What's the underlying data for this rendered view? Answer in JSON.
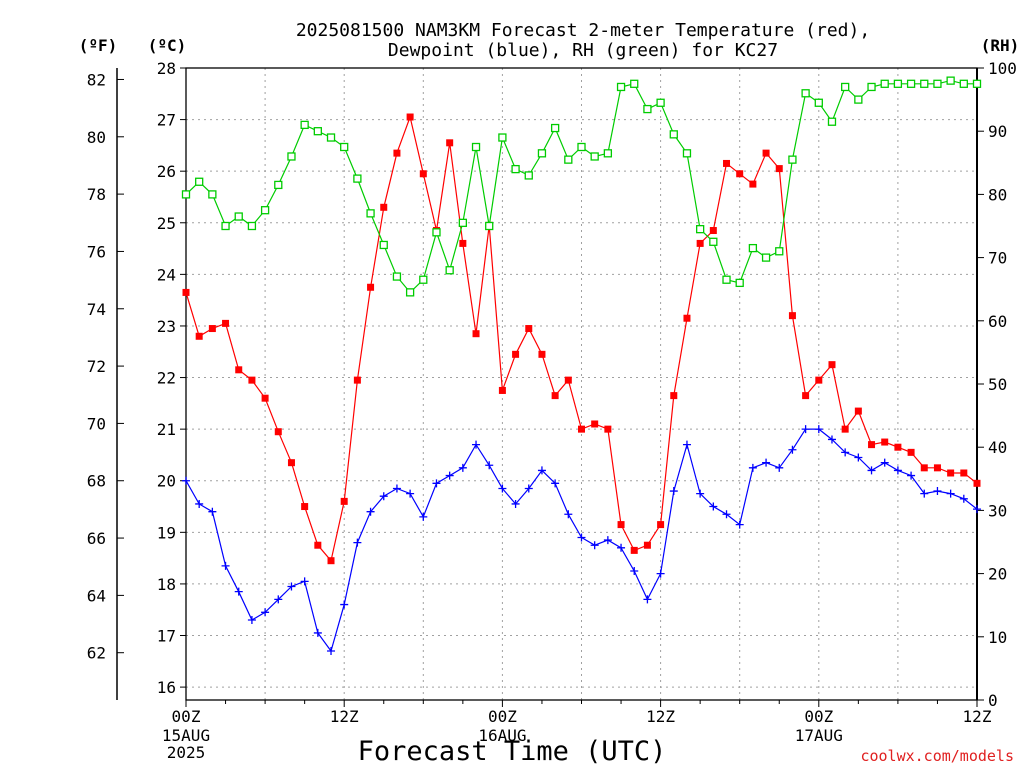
{
  "title_line1": "2025081500 NAM3KM Forecast 2-meter Temperature (red),",
  "title_line2": "Dewpoint (blue), RH (green) for KC27",
  "unit_f": "(ºF)",
  "unit_c": "(ºC)",
  "unit_rh": "(RH)",
  "xlabel": "Forecast Time (UTC)",
  "watermark": "coolwx.com/models",
  "colors": {
    "temperature": "#ff0000",
    "dewpoint": "#0000ff",
    "rh": "#00cc00",
    "axis": "#000000",
    "grid": "#a0a0a0"
  },
  "chart_data": {
    "type": "line",
    "x": [
      0,
      1,
      2,
      3,
      4,
      5,
      6,
      7,
      8,
      9,
      10,
      11,
      12,
      13,
      14,
      15,
      16,
      17,
      18,
      19,
      20,
      21,
      22,
      23,
      24,
      25,
      26,
      27,
      28,
      29,
      30,
      31,
      32,
      33,
      34,
      35,
      36,
      37,
      38,
      39,
      40,
      41,
      42,
      43,
      44,
      45,
      46,
      47,
      48,
      49,
      50,
      51,
      52,
      53,
      54,
      55,
      56,
      57,
      58,
      59,
      60
    ],
    "xlim": [
      0,
      60
    ],
    "x_ticks": [
      {
        "x": 0,
        "label": "00Z",
        "sub": "15AUG",
        "year": "2025"
      },
      {
        "x": 12,
        "label": "12Z"
      },
      {
        "x": 24,
        "label": "00Z",
        "sub": "16AUG"
      },
      {
        "x": 36,
        "label": "12Z"
      },
      {
        "x": 48,
        "label": "00Z",
        "sub": "17AUG"
      },
      {
        "x": 60,
        "label": "12Z"
      }
    ],
    "celsius_axis": {
      "lim": [
        15.75,
        28.0
      ],
      "ticks": [
        "16",
        "17",
        "18",
        "19",
        "20",
        "21",
        "22",
        "23",
        "24",
        "25",
        "26",
        "27",
        "28"
      ]
    },
    "fahrenheit_axis": {
      "ticks": [
        "62",
        "64",
        "66",
        "68",
        "70",
        "72",
        "74",
        "76",
        "78",
        "80",
        "82"
      ]
    },
    "rh_axis": {
      "lim": [
        0,
        100
      ],
      "ticks": [
        "0",
        "10",
        "20",
        "30",
        "40",
        "50",
        "60",
        "70",
        "80",
        "90",
        "100"
      ]
    },
    "grid": true,
    "series": [
      {
        "name": "Temperature",
        "axis": "celsius",
        "marker": "filled-square",
        "values": [
          23.65,
          22.8,
          22.95,
          23.05,
          22.15,
          21.95,
          21.6,
          20.95,
          20.35,
          19.5,
          18.75,
          18.45,
          19.6,
          21.95,
          23.75,
          25.3,
          26.35,
          27.05,
          25.95,
          24.85,
          26.55,
          24.6,
          22.85,
          24.95,
          21.75,
          22.45,
          22.95,
          22.45,
          21.65,
          21.95,
          21.0,
          21.1,
          21.0,
          19.15,
          18.65,
          18.75,
          19.15,
          21.65,
          23.15,
          24.6,
          24.85,
          26.15,
          25.95,
          25.75,
          26.35,
          26.05,
          23.2,
          21.65,
          21.95,
          22.25,
          21.0,
          21.35,
          20.7,
          20.75,
          20.65,
          20.55,
          20.25,
          20.25,
          20.15,
          20.15,
          19.95
        ]
      },
      {
        "name": "Dewpoint",
        "axis": "celsius",
        "marker": "plus",
        "values": [
          20.0,
          19.55,
          19.4,
          18.35,
          17.85,
          17.3,
          17.45,
          17.7,
          17.95,
          18.05,
          17.05,
          16.7,
          17.6,
          18.8,
          19.4,
          19.7,
          19.85,
          19.75,
          19.3,
          19.95,
          20.1,
          20.25,
          20.7,
          20.3,
          19.85,
          19.55,
          19.85,
          20.2,
          19.95,
          19.35,
          18.9,
          18.75,
          18.85,
          18.7,
          18.25,
          17.7,
          18.2,
          19.8,
          20.7,
          19.75,
          19.5,
          19.35,
          19.15,
          20.25,
          20.35,
          20.25,
          20.6,
          21.0,
          21.0,
          20.8,
          20.55,
          20.45,
          20.2,
          20.35,
          20.2,
          20.1,
          19.75,
          19.8,
          19.75,
          19.65,
          19.45
        ]
      },
      {
        "name": "RH",
        "axis": "rh",
        "marker": "open-square",
        "values": [
          80,
          82,
          80,
          75,
          76.5,
          75,
          77.5,
          81.5,
          86,
          91,
          90,
          89,
          87.5,
          82.5,
          77,
          72,
          67,
          64.5,
          66.5,
          74,
          68,
          75.5,
          87.5,
          75,
          89,
          84,
          83,
          86.5,
          90.5,
          85.5,
          87.5,
          86,
          86.5,
          97,
          97.5,
          93.5,
          94.5,
          89.5,
          86.5,
          74.5,
          72.5,
          66.5,
          66,
          71.5,
          70,
          71,
          85.5,
          96,
          94.5,
          91.5,
          97,
          95,
          97,
          97.5,
          97.5,
          97.5,
          97.5,
          97.5,
          98,
          97.5,
          97.5
        ]
      }
    ]
  }
}
